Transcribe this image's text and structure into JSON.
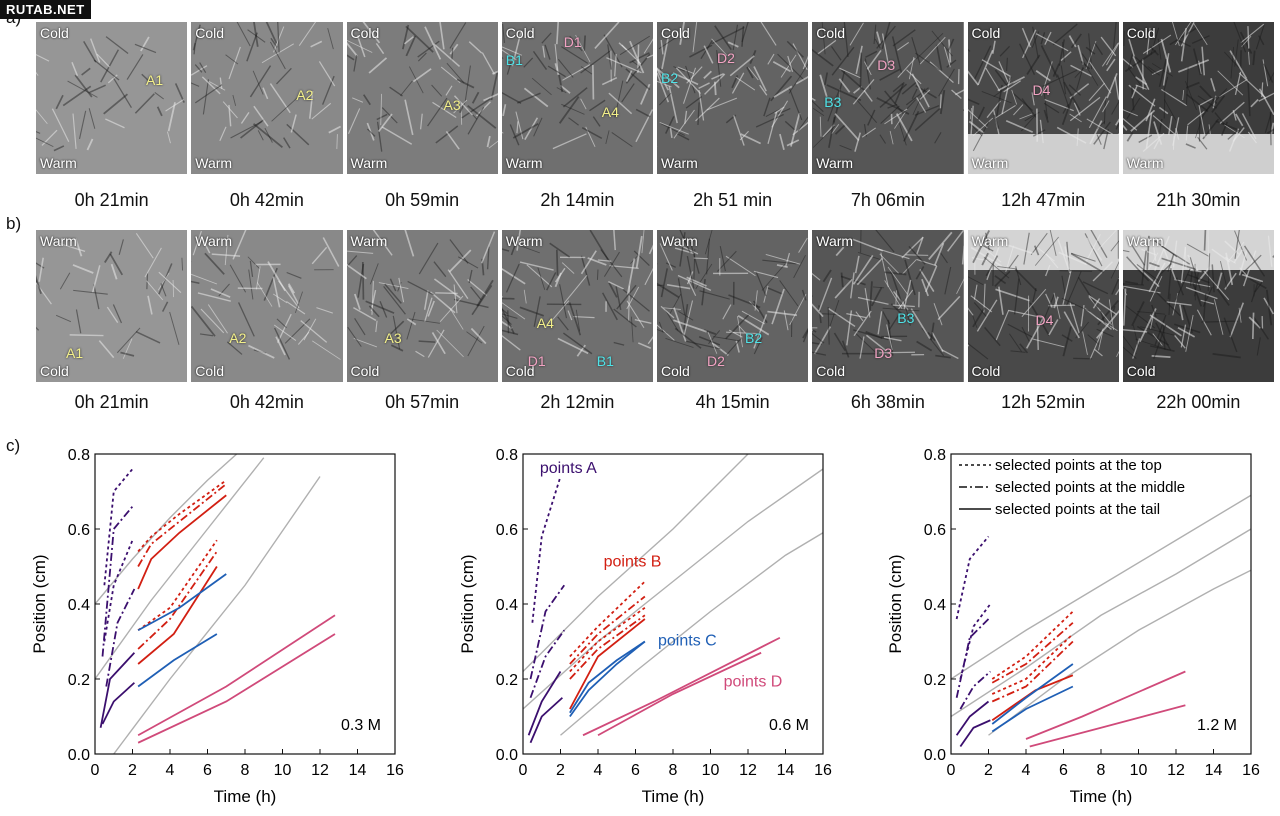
{
  "watermark": "RUTAB.NET",
  "labels": {
    "a": "a)",
    "b": "b)",
    "c": "c)"
  },
  "row_a": {
    "top": "Cold",
    "bottom": "Warm",
    "times": [
      "0h 21min",
      "0h 42min",
      "0h 59min",
      "2h 14min",
      "2h 51 min",
      "7h 06min",
      "12h 47min",
      "21h 30min"
    ],
    "annotations": [
      "A1",
      "A2",
      "A3",
      "A4",
      "B1",
      "D1",
      "B2",
      "D2",
      "B3",
      "D3",
      "D4"
    ]
  },
  "row_b": {
    "top": "Warm",
    "bottom": "Cold",
    "times": [
      "0h 21min",
      "0h 42min",
      "0h 57min",
      "2h 12min",
      "4h 15min",
      "6h 38min",
      "12h 52min",
      "22h 00min"
    ],
    "annotations": [
      "A1",
      "A2",
      "A3",
      "A4",
      "D1",
      "B1",
      "B2",
      "D2",
      "B3",
      "D3",
      "D4"
    ]
  },
  "chart_data": [
    {
      "type": "line",
      "concentration": "0.3 M",
      "xlabel": "Time (h)",
      "ylabel": "Position (cm)",
      "xlim": [
        0,
        16
      ],
      "ylim": [
        0,
        0.8
      ],
      "xticks": [
        0,
        2,
        4,
        6,
        8,
        10,
        12,
        14,
        16
      ],
      "yticks": [
        0,
        0.2,
        0.4,
        0.6,
        0.8
      ],
      "grey_curves": [
        {
          "x": [
            0,
            2,
            4,
            6,
            8
          ],
          "y": [
            0.4,
            0.52,
            0.63,
            0.73,
            0.82
          ]
        },
        {
          "x": [
            0,
            3,
            6,
            9
          ],
          "y": [
            0.2,
            0.41,
            0.6,
            0.79
          ]
        },
        {
          "x": [
            1,
            4,
            8,
            12
          ],
          "y": [
            0,
            0.2,
            0.45,
            0.74
          ]
        }
      ],
      "series": [
        {
          "group": "A",
          "style": "top",
          "x": [
            0.5,
            1,
            2
          ],
          "y": [
            0.45,
            0.7,
            0.76
          ]
        },
        {
          "group": "A",
          "style": "middle",
          "x": [
            0.4,
            1,
            2
          ],
          "y": [
            0.26,
            0.6,
            0.66
          ]
        },
        {
          "group": "A",
          "style": "top",
          "x": [
            0.5,
            1,
            2
          ],
          "y": [
            0.3,
            0.45,
            0.57
          ]
        },
        {
          "group": "A",
          "style": "middle",
          "x": [
            0.6,
            1.2,
            2.1
          ],
          "y": [
            0.18,
            0.35,
            0.44
          ]
        },
        {
          "group": "A",
          "style": "tail",
          "x": [
            0.3,
            0.8,
            2.1
          ],
          "y": [
            0.07,
            0.2,
            0.27
          ]
        },
        {
          "group": "A",
          "style": "tail",
          "x": [
            0.4,
            1,
            2.1
          ],
          "y": [
            0.08,
            0.14,
            0.19
          ]
        },
        {
          "group": "B",
          "style": "top",
          "x": [
            2.3,
            3,
            4.5,
            7
          ],
          "y": [
            0.54,
            0.58,
            0.64,
            0.73
          ]
        },
        {
          "group": "B",
          "style": "middle",
          "x": [
            2.3,
            3,
            4.5,
            7
          ],
          "y": [
            0.5,
            0.56,
            0.62,
            0.72
          ]
        },
        {
          "group": "B",
          "style": "tail",
          "x": [
            2.3,
            3,
            4.5,
            7
          ],
          "y": [
            0.44,
            0.52,
            0.59,
            0.69
          ]
        },
        {
          "group": "B",
          "style": "top",
          "x": [
            2.3,
            4,
            6.5
          ],
          "y": [
            0.33,
            0.39,
            0.57
          ]
        },
        {
          "group": "B",
          "style": "middle",
          "x": [
            2.3,
            4,
            6.5
          ],
          "y": [
            0.28,
            0.36,
            0.54
          ]
        },
        {
          "group": "B",
          "style": "tail",
          "x": [
            2.3,
            4.2,
            6.5
          ],
          "y": [
            0.24,
            0.32,
            0.5
          ]
        },
        {
          "group": "C",
          "style": "tail",
          "x": [
            2.3,
            4.5,
            7
          ],
          "y": [
            0.33,
            0.39,
            0.48
          ]
        },
        {
          "group": "C",
          "style": "tail",
          "x": [
            2.3,
            4.2,
            6.5
          ],
          "y": [
            0.18,
            0.25,
            0.32
          ]
        },
        {
          "group": "D",
          "style": "tail",
          "x": [
            2.3,
            7,
            12.8
          ],
          "y": [
            0.05,
            0.18,
            0.37
          ]
        },
        {
          "group": "D",
          "style": "tail",
          "x": [
            2.3,
            7,
            12.8
          ],
          "y": [
            0.03,
            0.14,
            0.32
          ]
        }
      ],
      "annotations": []
    },
    {
      "type": "line",
      "concentration": "0.6 M",
      "xlabel": "Time (h)",
      "ylabel": "Position (cm)",
      "xlim": [
        0,
        16
      ],
      "ylim": [
        0,
        0.8
      ],
      "xticks": [
        0,
        2,
        4,
        6,
        8,
        10,
        12,
        14,
        16
      ],
      "yticks": [
        0,
        0.2,
        0.4,
        0.6,
        0.8
      ],
      "grey_curves": [
        {
          "x": [
            0,
            4,
            8,
            12
          ],
          "y": [
            0.22,
            0.42,
            0.6,
            0.8
          ]
        },
        {
          "x": [
            0,
            4,
            8,
            12,
            16
          ],
          "y": [
            0.12,
            0.3,
            0.46,
            0.62,
            0.76
          ]
        },
        {
          "x": [
            2,
            6,
            10,
            14,
            16
          ],
          "y": [
            0.05,
            0.22,
            0.38,
            0.53,
            0.59
          ]
        }
      ],
      "series": [
        {
          "group": "A",
          "style": "top",
          "x": [
            0.5,
            1,
            2
          ],
          "y": [
            0.35,
            0.58,
            0.74
          ]
        },
        {
          "group": "A",
          "style": "middle",
          "x": [
            0.4,
            1.2,
            2.2
          ],
          "y": [
            0.2,
            0.38,
            0.45
          ]
        },
        {
          "group": "A",
          "style": "middle",
          "x": [
            0.4,
            1.2,
            2.2
          ],
          "y": [
            0.15,
            0.26,
            0.33
          ]
        },
        {
          "group": "A",
          "style": "tail",
          "x": [
            0.3,
            1,
            2
          ],
          "y": [
            0.05,
            0.14,
            0.22
          ]
        },
        {
          "group": "A",
          "style": "tail",
          "x": [
            0.4,
            1,
            2.1
          ],
          "y": [
            0.03,
            0.1,
            0.15
          ]
        },
        {
          "group": "B",
          "style": "top",
          "x": [
            2.5,
            4,
            6.5
          ],
          "y": [
            0.26,
            0.34,
            0.46
          ]
        },
        {
          "group": "B",
          "style": "middle",
          "x": [
            2.5,
            4,
            6.5
          ],
          "y": [
            0.24,
            0.32,
            0.42
          ]
        },
        {
          "group": "B",
          "style": "top",
          "x": [
            2.5,
            4,
            6.5
          ],
          "y": [
            0.22,
            0.3,
            0.39
          ]
        },
        {
          "group": "B",
          "style": "middle",
          "x": [
            2.5,
            4,
            6.5
          ],
          "y": [
            0.2,
            0.28,
            0.37
          ]
        },
        {
          "group": "B",
          "style": "tail",
          "x": [
            2.5,
            4,
            6.5
          ],
          "y": [
            0.12,
            0.26,
            0.36
          ]
        },
        {
          "group": "C",
          "style": "tail",
          "x": [
            2.5,
            3.5,
            5,
            6.5
          ],
          "y": [
            0.1,
            0.17,
            0.24,
            0.3
          ]
        },
        {
          "group": "C",
          "style": "tail",
          "x": [
            2.5,
            3.5,
            5,
            6.5
          ],
          "y": [
            0.11,
            0.19,
            0.25,
            0.3
          ]
        },
        {
          "group": "D",
          "style": "tail",
          "x": [
            3.2,
            7,
            13.7
          ],
          "y": [
            0.05,
            0.14,
            0.31
          ]
        },
        {
          "group": "D",
          "style": "tail",
          "x": [
            4,
            8,
            12.7
          ],
          "y": [
            0.05,
            0.16,
            0.27
          ]
        }
      ],
      "annotations": [
        {
          "text": "points A",
          "group": "A",
          "x": 0.9,
          "y": 0.75
        },
        {
          "text": "points B",
          "group": "B",
          "x": 4.3,
          "y": 0.5
        },
        {
          "text": "points C",
          "group": "C",
          "x": 7.2,
          "y": 0.29
        },
        {
          "text": "points D",
          "group": "D",
          "x": 10.7,
          "y": 0.18
        }
      ]
    },
    {
      "type": "line",
      "concentration": "1.2 M",
      "xlabel": "Time (h)",
      "ylabel": "Position (cm)",
      "xlim": [
        0,
        16
      ],
      "ylim": [
        0,
        0.8
      ],
      "xticks": [
        0,
        2,
        4,
        6,
        8,
        10,
        12,
        14,
        16
      ],
      "yticks": [
        0,
        0.2,
        0.4,
        0.6,
        0.8
      ],
      "grey_curves": [
        {
          "x": [
            0,
            4,
            8,
            12,
            16
          ],
          "y": [
            0.2,
            0.33,
            0.45,
            0.57,
            0.69
          ]
        },
        {
          "x": [
            0,
            4,
            8,
            12,
            16
          ],
          "y": [
            0.1,
            0.23,
            0.37,
            0.48,
            0.6
          ]
        },
        {
          "x": [
            2,
            6,
            10,
            14,
            16
          ],
          "y": [
            0.05,
            0.2,
            0.33,
            0.44,
            0.49
          ]
        }
      ],
      "series": [
        {
          "group": "A",
          "style": "top",
          "x": [
            0.3,
            1,
            2
          ],
          "y": [
            0.36,
            0.52,
            0.58
          ]
        },
        {
          "group": "A",
          "style": "middle",
          "x": [
            0.3,
            1,
            2
          ],
          "y": [
            0.15,
            0.31,
            0.36
          ]
        },
        {
          "group": "A",
          "style": "top",
          "x": [
            0.5,
            1.2,
            2.1
          ],
          "y": [
            0.2,
            0.34,
            0.4
          ]
        },
        {
          "group": "A",
          "style": "middle",
          "x": [
            0.5,
            1.2,
            2.1
          ],
          "y": [
            0.12,
            0.18,
            0.22
          ]
        },
        {
          "group": "A",
          "style": "tail",
          "x": [
            0.3,
            1,
            2
          ],
          "y": [
            0.05,
            0.1,
            0.14
          ]
        },
        {
          "group": "A",
          "style": "tail",
          "x": [
            0.5,
            1.2,
            2.1
          ],
          "y": [
            0.02,
            0.07,
            0.09
          ]
        },
        {
          "group": "B",
          "style": "top",
          "x": [
            2.2,
            4,
            6.5
          ],
          "y": [
            0.2,
            0.26,
            0.38
          ]
        },
        {
          "group": "B",
          "style": "middle",
          "x": [
            2.2,
            4,
            6.5
          ],
          "y": [
            0.19,
            0.24,
            0.35
          ]
        },
        {
          "group": "B",
          "style": "top",
          "x": [
            2.2,
            4,
            6.5
          ],
          "y": [
            0.16,
            0.2,
            0.32
          ]
        },
        {
          "group": "B",
          "style": "middle",
          "x": [
            2.2,
            4,
            6.5
          ],
          "y": [
            0.14,
            0.18,
            0.3
          ]
        },
        {
          "group": "B",
          "style": "tail",
          "x": [
            2.2,
            4.5,
            6.5
          ],
          "y": [
            0.09,
            0.17,
            0.21
          ]
        },
        {
          "group": "C",
          "style": "tail",
          "x": [
            2.2,
            4,
            6.5
          ],
          "y": [
            0.08,
            0.15,
            0.24
          ]
        },
        {
          "group": "C",
          "style": "tail",
          "x": [
            2.2,
            4,
            6.5
          ],
          "y": [
            0.06,
            0.12,
            0.18
          ]
        },
        {
          "group": "D",
          "style": "tail",
          "x": [
            4,
            7,
            12.5
          ],
          "y": [
            0.04,
            0.1,
            0.22
          ]
        },
        {
          "group": "D",
          "style": "tail",
          "x": [
            4.2,
            8,
            12.5
          ],
          "y": [
            0.02,
            0.07,
            0.13
          ]
        }
      ],
      "annotations": []
    }
  ],
  "legend": {
    "items": [
      {
        "style": "top",
        "label": "selected points at the top"
      },
      {
        "style": "middle",
        "label": "selected points at the middle"
      },
      {
        "style": "tail",
        "label": "selected points at the tail"
      }
    ]
  },
  "colors": {
    "A": "#3b0f6e",
    "B": "#d21f12",
    "C": "#1f5fb5",
    "D": "#d04a7a",
    "grey": "#b0b0b0",
    "yellow_marker": "#f3f08a",
    "cyan_marker": "#4fe3e8",
    "pink_marker": "#f2a3c3"
  }
}
